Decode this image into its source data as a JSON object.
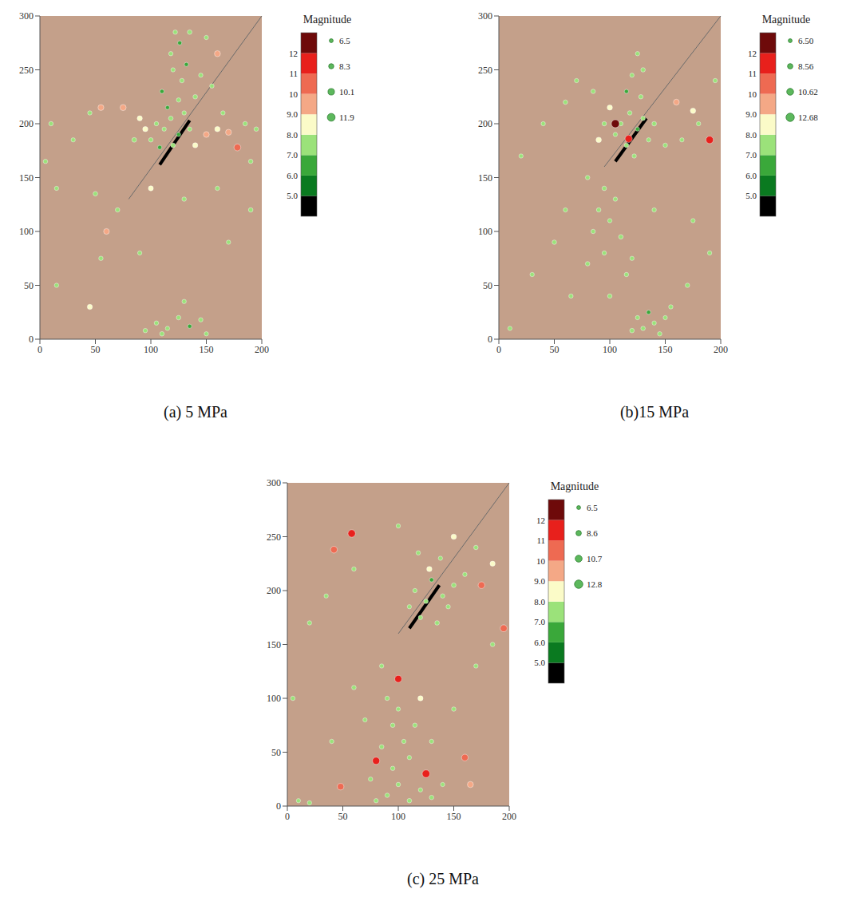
{
  "chart_data": [
    {
      "type": "scatter",
      "title": "(a) 5 MPa",
      "xlim": [
        0,
        200
      ],
      "ylim": [
        0,
        300
      ],
      "xticks": [
        0,
        50,
        100,
        150,
        200
      ],
      "yticks": [
        0,
        50,
        100,
        150,
        200,
        250,
        300
      ],
      "x": [
        105,
        112,
        118,
        125,
        130,
        100,
        108,
        120,
        135,
        115,
        125,
        110,
        128,
        120,
        132,
        118,
        126,
        122,
        140,
        145,
        95,
        90,
        85,
        140,
        150,
        160,
        170,
        178,
        185,
        165,
        155,
        160,
        150,
        135,
        75,
        55,
        45,
        30,
        10,
        5,
        15,
        50,
        60,
        55,
        90,
        70,
        100,
        130,
        160,
        190,
        170,
        45,
        15,
        105,
        115,
        125,
        135,
        145,
        110,
        150,
        95,
        130,
        190,
        195
      ],
      "y": [
        200,
        195,
        205,
        190,
        210,
        185,
        178,
        180,
        195,
        215,
        222,
        230,
        240,
        250,
        255,
        265,
        275,
        285,
        225,
        245,
        195,
        205,
        185,
        180,
        190,
        195,
        192,
        178,
        200,
        210,
        235,
        265,
        280,
        285,
        215,
        215,
        210,
        185,
        200,
        165,
        140,
        135,
        100,
        75,
        80,
        120,
        140,
        130,
        140,
        120,
        90,
        30,
        50,
        15,
        10,
        20,
        12,
        18,
        5,
        5,
        8,
        35,
        165,
        195
      ],
      "magnitude": [
        7.2,
        7.0,
        7.4,
        6.8,
        7.1,
        7.3,
        6.9,
        7.5,
        7.0,
        6.7,
        7.2,
        6.9,
        7.3,
        7.0,
        6.8,
        7.1,
        6.9,
        7.2,
        7.4,
        7.0,
        8.4,
        8.2,
        7.6,
        8.3,
        9.2,
        8.5,
        9.4,
        10.6,
        7.3,
        7.1,
        7.2,
        9.5,
        7.0,
        7.4,
        9.6,
        9.3,
        7.1,
        7.0,
        7.3,
        7.2,
        7.0,
        7.4,
        9.1,
        7.2,
        7.0,
        7.3,
        8.1,
        7.2,
        7.1,
        7.4,
        7.0,
        8.2,
        7.1,
        7.2,
        7.0,
        7.3,
        6.9,
        7.1,
        7.4,
        7.0,
        7.2,
        7.1,
        7.2,
        7.3
      ],
      "colorbar": {
        "title": "Magnitude",
        "range": [
          4,
          13
        ],
        "ticks": [
          {
            "value": 5,
            "label": "5.0"
          },
          {
            "value": 6,
            "label": "6.0"
          },
          {
            "value": 7,
            "label": "7.0"
          },
          {
            "value": 8,
            "label": "8.0"
          },
          {
            "value": 9,
            "label": "9.0"
          },
          10,
          11,
          12
        ],
        "colors": [
          "#000000",
          "#0a7a20",
          "#3aa83a",
          "#9be27a",
          "#fbfbc8",
          "#f4a886",
          "#ee6a52",
          "#e8201c",
          "#6e0a0a"
        ]
      },
      "size_legend": [
        6.5,
        8.3,
        10.1,
        11.9
      ],
      "fracture": {
        "x": [
          80,
          200
        ],
        "y": [
          130,
          300
        ]
      },
      "highlight": {
        "x": [
          108,
          135
        ],
        "y": [
          162,
          203
        ]
      }
    },
    {
      "type": "scatter",
      "title": "(b)15 MPa",
      "xlim": [
        0,
        200
      ],
      "ylim": [
        0,
        300
      ],
      "xticks": [
        0,
        50,
        100,
        150,
        200
      ],
      "yticks": [
        0,
        50,
        100,
        150,
        200,
        250,
        300
      ],
      "x": [
        110,
        118,
        125,
        130,
        105,
        115,
        122,
        135,
        140,
        128,
        115,
        120,
        130,
        125,
        100,
        95,
        90,
        105,
        117,
        190,
        175,
        160,
        150,
        165,
        180,
        85,
        70,
        60,
        40,
        20,
        80,
        95,
        105,
        90,
        100,
        85,
        110,
        95,
        120,
        80,
        115,
        140,
        60,
        50,
        30,
        175,
        190,
        170,
        125,
        130,
        140,
        135,
        145,
        150,
        120,
        155,
        100,
        65,
        10,
        195
      ],
      "y": [
        200,
        210,
        195,
        205,
        190,
        180,
        170,
        185,
        200,
        225,
        230,
        245,
        250,
        265,
        215,
        200,
        185,
        200,
        186,
        185,
        212,
        220,
        180,
        185,
        200,
        230,
        240,
        220,
        200,
        170,
        150,
        140,
        130,
        120,
        110,
        100,
        95,
        80,
        75,
        70,
        60,
        120,
        120,
        90,
        60,
        110,
        80,
        50,
        20,
        10,
        15,
        25,
        5,
        20,
        8,
        30,
        40,
        40,
        10,
        240
      ],
      "magnitude": [
        7.1,
        7.3,
        6.9,
        7.2,
        7.0,
        7.4,
        7.1,
        7.0,
        7.5,
        7.2,
        6.8,
        7.0,
        7.3,
        7.1,
        8.4,
        7.3,
        8.6,
        12.3,
        11.2,
        11.5,
        8.6,
        9.3,
        7.2,
        7.0,
        7.1,
        7.2,
        7.0,
        7.3,
        7.1,
        7.0,
        7.2,
        7.4,
        7.1,
        7.3,
        7.0,
        7.2,
        7.4,
        7.1,
        7.0,
        7.3,
        7.2,
        7.1,
        7.0,
        7.3,
        7.2,
        7.0,
        7.1,
        7.2,
        7.0,
        7.3,
        7.1,
        6.9,
        7.2,
        7.0,
        7.4,
        7.1,
        7.3,
        7.1,
        7.0,
        7.2
      ],
      "colorbar": {
        "title": "Magnitude",
        "range": [
          4,
          13
        ],
        "ticks": [
          {
            "value": 5,
            "label": "5.0"
          },
          {
            "value": 6,
            "label": "6.0"
          },
          {
            "value": 7,
            "label": "7.0"
          },
          {
            "value": 8,
            "label": "8.0"
          },
          {
            "value": 9,
            "label": "9.0"
          },
          10,
          11,
          12
        ],
        "colors": [
          "#000000",
          "#0a7a20",
          "#3aa83a",
          "#9be27a",
          "#fbfbc8",
          "#f4a886",
          "#ee6a52",
          "#e8201c",
          "#6e0a0a"
        ]
      },
      "size_legend": [
        {
          "value": 6.5,
          "label": "6.50"
        },
        8.56,
        10.62,
        12.68
      ],
      "fracture": {
        "x": [
          95,
          200
        ],
        "y": [
          160,
          300
        ]
      },
      "highlight": {
        "x": [
          105,
          133
        ],
        "y": [
          165,
          205
        ]
      }
    },
    {
      "type": "scatter",
      "title": "(c) 25 MPa",
      "xlim": [
        0,
        200
      ],
      "ylim": [
        0,
        300
      ],
      "xticks": [
        0,
        50,
        100,
        150,
        200
      ],
      "yticks": [
        0,
        50,
        100,
        150,
        200,
        250,
        300
      ],
      "x": [
        115,
        125,
        130,
        140,
        120,
        135,
        145,
        110,
        150,
        128,
        138,
        118,
        150,
        160,
        175,
        170,
        185,
        100,
        60,
        58,
        42,
        35,
        20,
        195,
        185,
        170,
        90,
        100,
        95,
        105,
        85,
        110,
        95,
        75,
        100,
        120,
        90,
        80,
        130,
        140,
        110,
        100,
        80,
        125,
        160,
        48,
        115,
        120,
        130,
        70,
        60,
        85,
        150,
        165,
        10,
        20,
        5,
        40
      ],
      "y": [
        200,
        190,
        210,
        195,
        175,
        170,
        185,
        185,
        205,
        220,
        230,
        235,
        250,
        215,
        205,
        240,
        225,
        260,
        220,
        253,
        238,
        195,
        170,
        165,
        150,
        130,
        100,
        90,
        75,
        60,
        55,
        45,
        35,
        25,
        20,
        15,
        10,
        5,
        8,
        20,
        5,
        118,
        42,
        30,
        45,
        18,
        75,
        100,
        60,
        80,
        110,
        130,
        90,
        20,
        5,
        3,
        100,
        60
      ],
      "magnitude": [
        7.1,
        7.3,
        6.9,
        7.2,
        7.0,
        7.4,
        7.1,
        7.0,
        7.5,
        8.4,
        7.0,
        7.2,
        8.5,
        7.1,
        10.4,
        7.3,
        8.3,
        7.1,
        7.2,
        11.5,
        10.5,
        7.0,
        7.2,
        10.8,
        7.3,
        7.1,
        7.2,
        7.0,
        7.3,
        7.1,
        7.4,
        7.0,
        7.2,
        7.1,
        7.3,
        7.0,
        7.2,
        7.1,
        7.3,
        7.0,
        7.4,
        11.0,
        11.2,
        11.8,
        10.4,
        10.2,
        7.2,
        8.3,
        7.1,
        7.0,
        7.3,
        7.1,
        7.2,
        9.6,
        7.0,
        7.1,
        7.3,
        7.2
      ],
      "colorbar": {
        "title": "Magnitude",
        "range": [
          4,
          13
        ],
        "ticks": [
          {
            "value": 5,
            "label": "5.0"
          },
          {
            "value": 6,
            "label": "6.0"
          },
          {
            "value": 7,
            "label": "7.0"
          },
          {
            "value": 8,
            "label": "8.0"
          },
          {
            "value": 9,
            "label": "9.0"
          },
          10,
          11,
          12
        ],
        "colors": [
          "#000000",
          "#0a7a20",
          "#3aa83a",
          "#9be27a",
          "#fbfbc8",
          "#f4a886",
          "#ee6a52",
          "#e8201c",
          "#6e0a0a"
        ]
      },
      "size_legend": [
        6.5,
        8.6,
        10.7,
        12.8
      ],
      "fracture": {
        "x": [
          100,
          200
        ],
        "y": [
          160,
          300
        ]
      },
      "highlight": {
        "x": [
          110,
          137
        ],
        "y": [
          165,
          205
        ]
      }
    }
  ]
}
